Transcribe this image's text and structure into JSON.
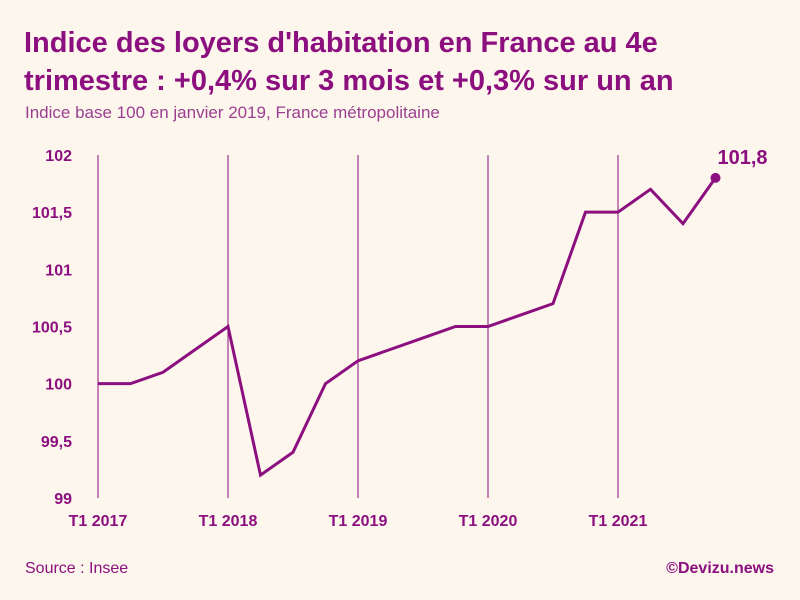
{
  "header": {
    "title": "Indice des loyers d'habitation en France au 4e trimestre : +0,4% sur 3 mois et +0,3% sur un an",
    "subtitle": "Indice base 100 en janvier 2019, France métropolitaine"
  },
  "footer": {
    "source": "Source : Insee",
    "brand": "©Devizu.news"
  },
  "colors": {
    "accent": "#8b0f7e",
    "background": "#fdf6ed"
  },
  "chart_data": {
    "type": "line",
    "title": "Indice des loyers d'habitation en France au 4e trimestre : +0,4% sur 3 mois et +0,3% sur un an",
    "subtitle": "Indice base 100 en janvier 2019, France métropolitaine",
    "x": [
      "T1 2017",
      "T2 2017",
      "T3 2017",
      "T4 2017",
      "T1 2018",
      "T2 2018",
      "T3 2018",
      "T4 2018",
      "T1 2019",
      "T2 2019",
      "T3 2019",
      "T4 2019",
      "T1 2020",
      "T2 2020",
      "T3 2020",
      "T4 2020",
      "T1 2021",
      "T2 2021",
      "T3 2021",
      "T4 2021"
    ],
    "series": [
      {
        "values": [
          100,
          100,
          100.1,
          100.3,
          100.5,
          99.2,
          99.4,
          100,
          100.2,
          100.3,
          100.4,
          100.5,
          100.5,
          100.6,
          100.7,
          101.5,
          101.5,
          101.7,
          101.4,
          101.8
        ]
      }
    ],
    "x_tick_labels": [
      "T1 2017",
      "T1 2018",
      "T1 2019",
      "T1 2020",
      "T1 2021"
    ],
    "y_tick_labels": [
      "99",
      "99,5",
      "100",
      "100,5",
      "101",
      "101,5",
      "102"
    ],
    "y_ticks": [
      99,
      99.5,
      100,
      100.5,
      101,
      101.5,
      102
    ],
    "ylim": [
      99,
      102
    ],
    "end_label": "101,8",
    "grid": "vertical lines at T1 of each year",
    "legend": "none"
  }
}
